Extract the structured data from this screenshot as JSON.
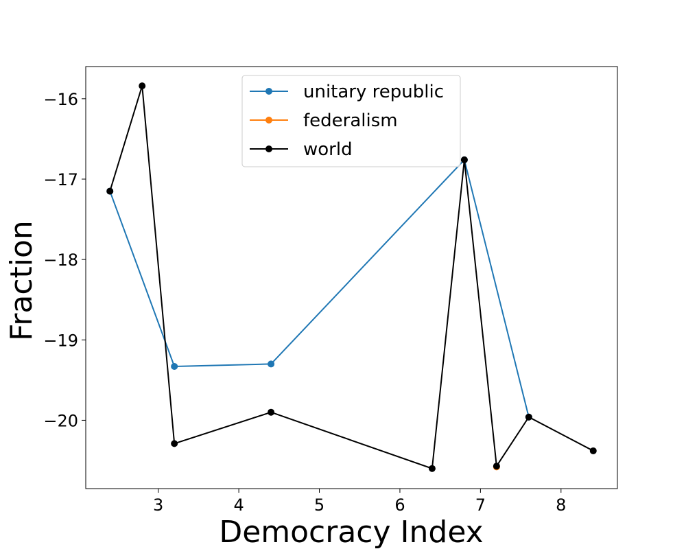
{
  "chart_data": {
    "type": "line",
    "title": "",
    "xlabel": "Democracy Index",
    "ylabel": "Fraction",
    "xlim": [
      2.1,
      8.7
    ],
    "ylim": [
      -20.85,
      -15.6
    ],
    "xticks": [
      3,
      4,
      5,
      6,
      7,
      8
    ],
    "yticks": [
      -16,
      -17,
      -18,
      -19,
      -20
    ],
    "xtick_labels": [
      "3",
      "4",
      "5",
      "6",
      "7",
      "8"
    ],
    "ytick_labels": [
      "−16",
      "−17",
      "−18",
      "−19",
      "−20"
    ],
    "grid": false,
    "legend_position": "upper-center",
    "series": [
      {
        "name": "unitary republic",
        "color": "#1f77b4",
        "x": [
          2.4,
          3.2,
          4.4,
          6.8,
          7.6
        ],
        "y": [
          -17.15,
          -19.33,
          -19.3,
          -16.76,
          -19.96
        ]
      },
      {
        "name": "federalism",
        "color": "#ff7f0e",
        "x": [
          7.2
        ],
        "y": [
          -20.58
        ]
      },
      {
        "name": "world",
        "color": "#000000",
        "x": [
          2.4,
          2.8,
          3.2,
          4.4,
          6.4,
          6.8,
          7.2,
          7.6,
          8.4
        ],
        "y": [
          -17.15,
          -15.84,
          -20.29,
          -19.9,
          -20.6,
          -16.76,
          -20.57,
          -19.96,
          -20.38
        ]
      }
    ]
  }
}
